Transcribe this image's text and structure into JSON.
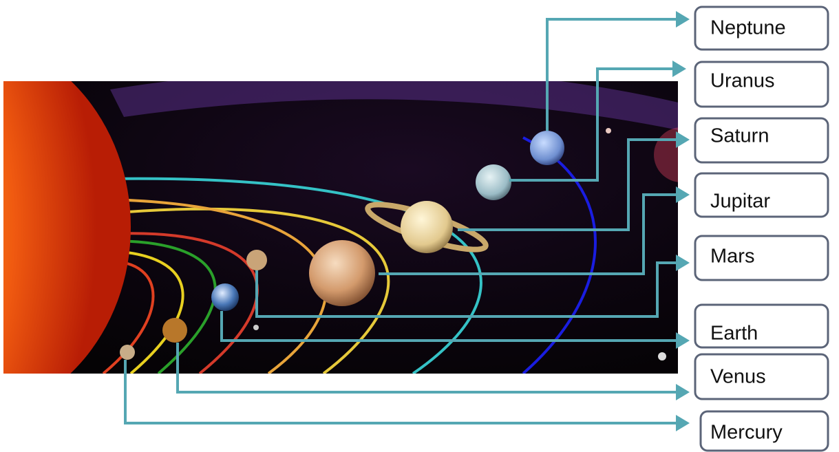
{
  "labels": [
    "Neptune",
    "Uranus",
    "Saturn",
    "Jupitar",
    "Mars",
    "Earth",
    "Venus",
    "Mercury"
  ]
}
